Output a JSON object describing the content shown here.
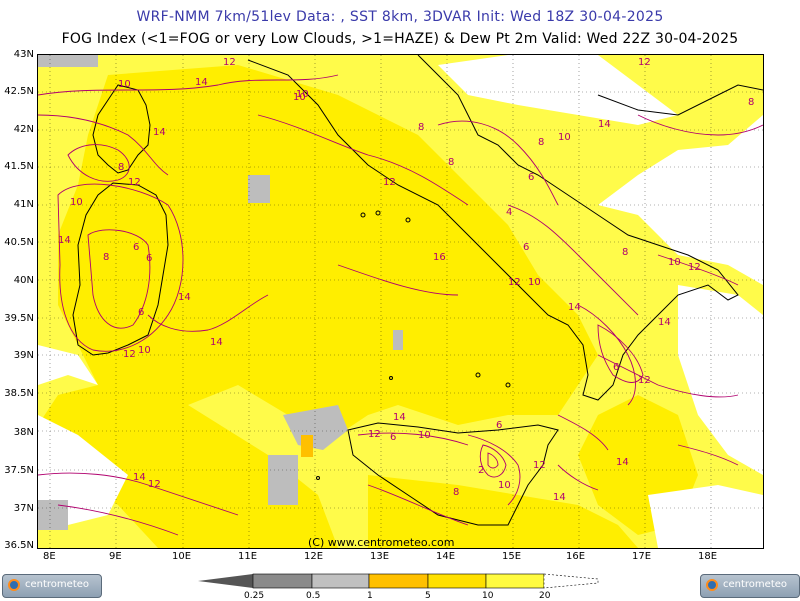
{
  "header": {
    "line1": "WRF-NMM 7km/51lev   Data: , SST 8km, 3DVAR   Init: Wed 18Z 30-04-2025",
    "line2": "FOG Index (<1=FOG or very Low Clouds, >1=HAZE) & Dew Pt 2m  Valid: Wed 22Z 30-04-2025"
  },
  "lat_labels": [
    "43N",
    "42.5N",
    "42N",
    "41.5N",
    "41N",
    "40.5N",
    "40N",
    "39.5N",
    "39N",
    "38.5N",
    "38N",
    "37.5N",
    "37N",
    "36.5N"
  ],
  "lon_labels": [
    "8E",
    "9E",
    "10E",
    "11E",
    "12E",
    "13E",
    "14E",
    "15E",
    "16E",
    "17E",
    "18E"
  ],
  "copyright": "(C) www.centrometeo.com",
  "logo_text": "centrometeo",
  "colorbar": {
    "labels": [
      "0.25",
      "0.5",
      "1",
      "5",
      "10",
      "20"
    ],
    "colors": [
      "#555555",
      "#8a8a8a",
      "#c0c0c0",
      "#ffc000",
      "#ffe000",
      "#fffb40"
    ]
  },
  "contour_labels": [
    {
      "t": "10",
      "c": "ctr"
    },
    {
      "t": "14",
      "c": "ctr"
    },
    {
      "t": "12",
      "c": "ctr"
    },
    {
      "t": "8",
      "c": "ctr"
    },
    {
      "t": "6",
      "c": "ctr"
    },
    {
      "t": "16",
      "c": "ctr"
    },
    {
      "t": "2",
      "c": "ctr"
    },
    {
      "t": "4",
      "c": "ctr"
    }
  ],
  "colors": {
    "fog_yellow": "#ffee00",
    "haze_light": "#fffb4a",
    "white": "#ffffff",
    "grey": "#bdbdbd",
    "orange": "#ffc000",
    "contour": "#b0006e",
    "coast": "#000000",
    "border": "#a0a0a0"
  }
}
